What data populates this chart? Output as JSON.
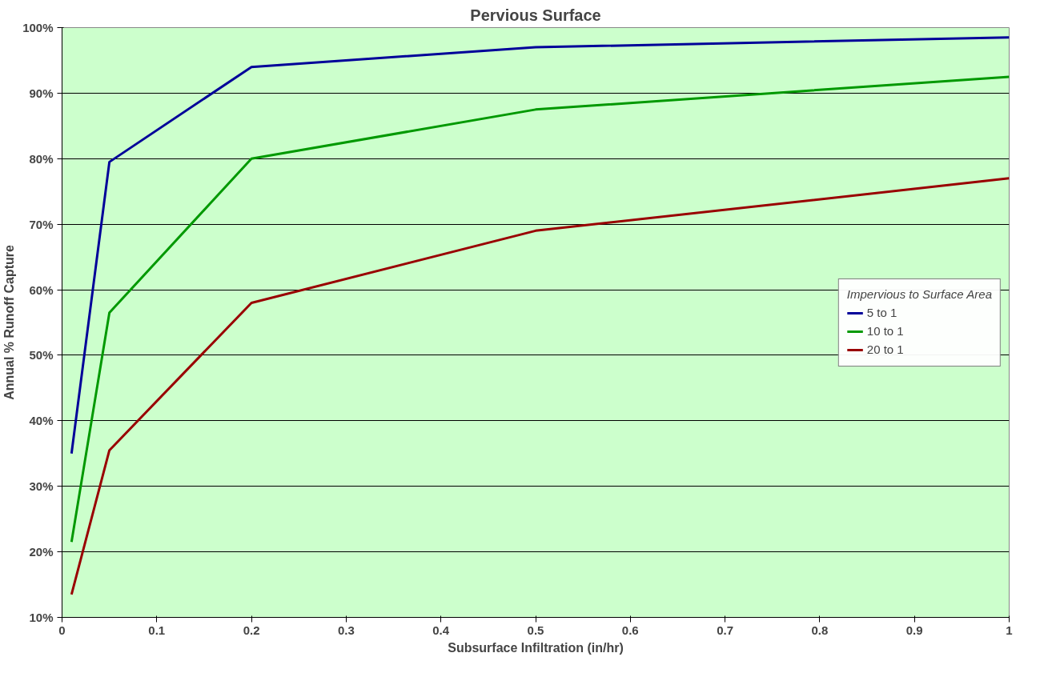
{
  "chart_data": {
    "type": "line",
    "title": "Pervious Surface",
    "xlabel": "Subsurface Infiltration (in/hr)",
    "ylabel": "Annual % Runoff Capture",
    "legend_title": "Impervious to Surface Area",
    "x": [
      0.01,
      0.05,
      0.2,
      0.5,
      1.0
    ],
    "series": [
      {
        "name": "5 to 1",
        "color": "#000099",
        "values": [
          35,
          79.5,
          94,
          97,
          98.5
        ]
      },
      {
        "name": "10 to 1",
        "color": "#009900",
        "values": [
          21.5,
          56.5,
          80,
          87.5,
          92.5
        ]
      },
      {
        "name": "20 to 1",
        "color": "#990000",
        "values": [
          13.5,
          35.5,
          58,
          69,
          77
        ]
      }
    ],
    "xlim": [
      0,
      1
    ],
    "xticks": [
      0,
      0.1,
      0.2,
      0.3,
      0.4,
      0.5,
      0.6,
      0.7,
      0.8,
      0.9,
      1
    ],
    "ylim": [
      10,
      100
    ],
    "yticks": [
      {
        "value": 10,
        "label": "10%"
      },
      {
        "value": 20,
        "label": "20%"
      },
      {
        "value": 30,
        "label": "30%"
      },
      {
        "value": 40,
        "label": "40%"
      },
      {
        "value": 50,
        "label": "50%"
      },
      {
        "value": 60,
        "label": "60%"
      },
      {
        "value": 70,
        "label": "70%"
      },
      {
        "value": 80,
        "label": "80%"
      },
      {
        "value": 90,
        "label": "90%"
      },
      {
        "value": 100,
        "label": "100%"
      }
    ],
    "grid": "y",
    "legend": "right",
    "marker": "none",
    "line_style": "solid"
  }
}
